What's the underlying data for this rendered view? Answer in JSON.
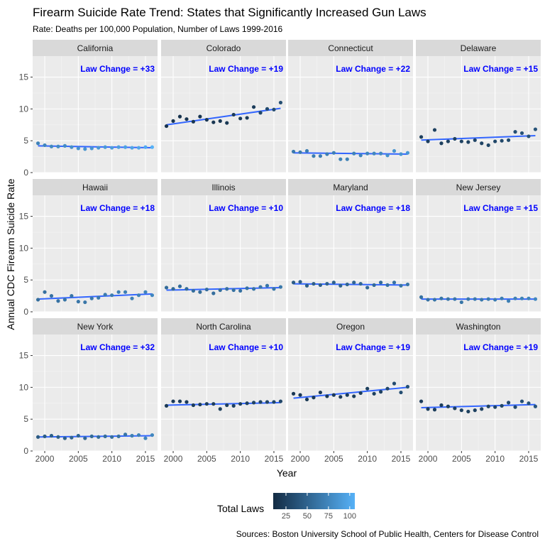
{
  "chart_data": {
    "type": "scatter",
    "title": "Firearm Suicide Rate Trend: States that Significantly Increased Gun Laws",
    "subtitle": "Rate: Deaths per 100,000 Population, Number of Laws 1999-2016",
    "xlabel": "Year",
    "ylabel": "Annual CDC Firearm Suicide Rate",
    "caption": "Sources: Boston University School of Public Health, Centers for Disease Control",
    "xlim": [
      1998.2,
      2016.8
    ],
    "ylim": [
      0,
      18.3
    ],
    "x_ticks": [
      2000,
      2005,
      2010,
      2015
    ],
    "y_ticks": [
      0,
      5,
      10,
      15
    ],
    "x_tick_labels": [
      "2000",
      "2005",
      "2010",
      "2015"
    ],
    "y_tick_labels": [
      "0",
      "5",
      "10",
      "15"
    ],
    "grid": true,
    "facet_layout": {
      "rows": 3,
      "cols": 4
    },
    "annotation_color": "#0000ff",
    "trend_color": "#3366ff",
    "panel_background": "#ebebeb",
    "strip_background": "#d9d9d9",
    "legend": {
      "title": "Total Laws",
      "placement": "bottom",
      "range": [
        10,
        106
      ],
      "ticks": [
        25,
        50,
        75,
        100
      ],
      "tick_labels": [
        "25",
        "50",
        "75",
        "100"
      ],
      "low_color": "#132b43",
      "high_color": "#56b1f7"
    },
    "panels": [
      {
        "state": "California",
        "law_change": "Law Change = +33",
        "x": [
          1999,
          2000,
          2001,
          2002,
          2003,
          2004,
          2005,
          2006,
          2007,
          2008,
          2009,
          2010,
          2011,
          2012,
          2013,
          2014,
          2015,
          2016
        ],
        "y": [
          4.6,
          4.3,
          4.1,
          4.1,
          4.2,
          4.0,
          3.8,
          3.7,
          3.8,
          3.9,
          4.0,
          3.9,
          4.0,
          4.0,
          3.9,
          3.9,
          4.0,
          4.0
        ],
        "laws": [
          73,
          75,
          77,
          79,
          80,
          82,
          84,
          85,
          86,
          88,
          89,
          91,
          93,
          95,
          97,
          99,
          102,
          106
        ],
        "trend": [
          [
            1999,
            4.2
          ],
          [
            2016,
            3.9
          ]
        ]
      },
      {
        "state": "Colorado",
        "law_change": "Law Change = +19",
        "x": [
          1999,
          2000,
          2001,
          2002,
          2003,
          2004,
          2005,
          2006,
          2007,
          2008,
          2009,
          2010,
          2011,
          2012,
          2013,
          2014,
          2015,
          2016
        ],
        "y": [
          7.3,
          8.1,
          8.8,
          8.4,
          8.0,
          8.8,
          8.3,
          7.9,
          8.1,
          7.8,
          9.1,
          8.5,
          8.6,
          10.3,
          9.4,
          10.0,
          9.9,
          11.0
        ],
        "laws": [
          16,
          16,
          16,
          17,
          17,
          17,
          18,
          18,
          19,
          19,
          20,
          20,
          21,
          22,
          30,
          32,
          33,
          35
        ],
        "trend": [
          [
            1999,
            7.5
          ],
          [
            2016,
            10.1
          ]
        ]
      },
      {
        "state": "Connecticut",
        "law_change": "Law Change = +22",
        "x": [
          1999,
          2000,
          2001,
          2002,
          2003,
          2004,
          2005,
          2006,
          2007,
          2008,
          2009,
          2010,
          2011,
          2012,
          2013,
          2014,
          2015,
          2016
        ],
        "y": [
          3.3,
          3.2,
          3.4,
          2.6,
          2.6,
          2.9,
          3.1,
          2.1,
          2.1,
          3.0,
          2.7,
          3.0,
          3.0,
          3.0,
          2.7,
          3.4,
          2.9,
          3.1
        ],
        "laws": [
          66,
          67,
          68,
          68,
          69,
          70,
          71,
          72,
          72,
          73,
          74,
          75,
          76,
          77,
          83,
          85,
          86,
          88
        ],
        "trend": [
          [
            1999,
            3.1
          ],
          [
            2016,
            2.9
          ]
        ]
      },
      {
        "state": "Delaware",
        "law_change": "Law Change = +15",
        "x": [
          1999,
          2000,
          2001,
          2002,
          2003,
          2004,
          2005,
          2006,
          2007,
          2008,
          2009,
          2010,
          2011,
          2012,
          2013,
          2014,
          2015,
          2016
        ],
        "y": [
          5.6,
          4.9,
          6.7,
          4.6,
          4.9,
          5.3,
          4.9,
          4.8,
          5.1,
          4.6,
          4.3,
          4.9,
          5.0,
          5.1,
          6.4,
          6.2,
          5.7,
          6.8
        ],
        "laws": [
          24,
          24,
          25,
          25,
          26,
          26,
          27,
          27,
          28,
          28,
          29,
          30,
          31,
          32,
          35,
          37,
          38,
          39
        ],
        "trend": [
          [
            1999,
            5.1
          ],
          [
            2016,
            5.8
          ]
        ]
      },
      {
        "state": "Hawaii",
        "law_change": "Law Change = +18",
        "x": [
          1999,
          2000,
          2001,
          2002,
          2003,
          2004,
          2005,
          2006,
          2007,
          2008,
          2009,
          2010,
          2011,
          2012,
          2013,
          2014,
          2015,
          2016
        ],
        "y": [
          1.9,
          3.1,
          2.5,
          1.7,
          1.9,
          2.5,
          1.6,
          1.5,
          2.1,
          2.2,
          2.7,
          2.6,
          3.1,
          3.1,
          2.1,
          2.6,
          3.1,
          2.6
        ],
        "laws": [
          58,
          59,
          60,
          61,
          62,
          63,
          64,
          64,
          65,
          66,
          67,
          68,
          69,
          70,
          71,
          73,
          74,
          76
        ],
        "trend": [
          [
            1999,
            2.0
          ],
          [
            2016,
            2.8
          ]
        ]
      },
      {
        "state": "Illinois",
        "law_change": "Law Change = +10",
        "x": [
          1999,
          2000,
          2001,
          2002,
          2003,
          2004,
          2005,
          2006,
          2007,
          2008,
          2009,
          2010,
          2011,
          2012,
          2013,
          2014,
          2015,
          2016
        ],
        "y": [
          3.8,
          3.6,
          4.0,
          3.6,
          3.3,
          3.1,
          3.5,
          2.9,
          3.4,
          3.6,
          3.4,
          3.3,
          3.7,
          3.6,
          3.9,
          4.1,
          3.6,
          3.9
        ],
        "laws": [
          55,
          55,
          56,
          56,
          57,
          57,
          58,
          58,
          59,
          59,
          60,
          60,
          61,
          62,
          63,
          63,
          64,
          65
        ],
        "trend": [
          [
            1999,
            3.4
          ],
          [
            2016,
            3.8
          ]
        ]
      },
      {
        "state": "Maryland",
        "law_change": "Law Change = +18",
        "x": [
          1999,
          2000,
          2001,
          2002,
          2003,
          2004,
          2005,
          2006,
          2007,
          2008,
          2009,
          2010,
          2011,
          2012,
          2013,
          2014,
          2015,
          2016
        ],
        "y": [
          4.6,
          4.7,
          4.1,
          4.4,
          4.2,
          4.4,
          4.6,
          4.1,
          4.3,
          4.6,
          4.4,
          3.8,
          4.2,
          4.6,
          4.2,
          4.6,
          4.1,
          4.3
        ],
        "laws": [
          45,
          46,
          47,
          47,
          48,
          49,
          50,
          50,
          51,
          52,
          53,
          54,
          55,
          56,
          60,
          61,
          62,
          63
        ],
        "trend": [
          [
            1999,
            4.4
          ],
          [
            2016,
            4.2
          ]
        ]
      },
      {
        "state": "New Jersey",
        "law_change": "Law Change = +15",
        "x": [
          1999,
          2000,
          2001,
          2002,
          2003,
          2004,
          2005,
          2006,
          2007,
          2008,
          2009,
          2010,
          2011,
          2012,
          2013,
          2014,
          2015,
          2016
        ],
        "y": [
          2.3,
          1.9,
          1.9,
          2.1,
          2.0,
          2.0,
          1.5,
          2.0,
          2.0,
          1.9,
          2.0,
          1.9,
          2.1,
          1.7,
          2.1,
          2.1,
          2.1,
          2.0
        ],
        "laws": [
          60,
          61,
          62,
          62,
          63,
          64,
          64,
          65,
          66,
          66,
          67,
          68,
          69,
          70,
          71,
          72,
          73,
          75
        ],
        "trend": [
          [
            1999,
            2.0
          ],
          [
            2016,
            2.0
          ]
        ]
      },
      {
        "state": "New York",
        "law_change": "Law Change = +32",
        "x": [
          1999,
          2000,
          2001,
          2002,
          2003,
          2004,
          2005,
          2006,
          2007,
          2008,
          2009,
          2010,
          2011,
          2012,
          2013,
          2014,
          2015,
          2016
        ],
        "y": [
          2.2,
          2.3,
          2.4,
          2.2,
          2.0,
          2.1,
          2.4,
          2.0,
          2.3,
          2.2,
          2.3,
          2.2,
          2.3,
          2.6,
          2.4,
          2.5,
          2.0,
          2.5
        ],
        "laws": [
          44,
          45,
          47,
          48,
          49,
          51,
          52,
          53,
          55,
          56,
          57,
          59,
          60,
          62,
          70,
          72,
          74,
          76
        ],
        "trend": [
          [
            1999,
            2.2
          ],
          [
            2016,
            2.4
          ]
        ]
      },
      {
        "state": "North Carolina",
        "law_change": "Law Change = +10",
        "x": [
          1999,
          2000,
          2001,
          2002,
          2003,
          2004,
          2005,
          2006,
          2007,
          2008,
          2009,
          2010,
          2011,
          2012,
          2013,
          2014,
          2015,
          2016
        ],
        "y": [
          7.1,
          7.8,
          7.8,
          7.7,
          7.2,
          7.3,
          7.4,
          7.4,
          6.6,
          7.2,
          7.1,
          7.4,
          7.5,
          7.6,
          7.7,
          7.7,
          7.7,
          7.8
        ],
        "laws": [
          20,
          20,
          21,
          21,
          22,
          22,
          23,
          23,
          24,
          24,
          25,
          25,
          26,
          27,
          28,
          28,
          29,
          30
        ],
        "trend": [
          [
            1999,
            7.2
          ],
          [
            2016,
            7.6
          ]
        ]
      },
      {
        "state": "Oregon",
        "law_change": "Law Change = +19",
        "x": [
          1999,
          2000,
          2001,
          2002,
          2003,
          2004,
          2005,
          2006,
          2007,
          2008,
          2009,
          2010,
          2011,
          2012,
          2013,
          2014,
          2015,
          2016
        ],
        "y": [
          9.0,
          8.8,
          8.1,
          8.4,
          9.2,
          8.6,
          8.8,
          8.5,
          8.8,
          8.6,
          9.1,
          9.8,
          9.0,
          9.3,
          9.8,
          10.6,
          9.2,
          10.1
        ],
        "laws": [
          18,
          18,
          19,
          19,
          20,
          20,
          21,
          21,
          22,
          22,
          23,
          24,
          25,
          26,
          30,
          33,
          35,
          37
        ],
        "trend": [
          [
            1999,
            8.3
          ],
          [
            2016,
            10.0
          ]
        ]
      },
      {
        "state": "Washington",
        "law_change": "Law Change = +19",
        "x": [
          1999,
          2000,
          2001,
          2002,
          2003,
          2004,
          2005,
          2006,
          2007,
          2008,
          2009,
          2010,
          2011,
          2012,
          2013,
          2014,
          2015,
          2016
        ],
        "y": [
          7.8,
          6.6,
          6.5,
          7.2,
          7.0,
          6.7,
          6.4,
          6.2,
          6.4,
          6.6,
          7.0,
          6.9,
          7.1,
          7.6,
          6.9,
          7.8,
          7.5,
          7.0
        ],
        "laws": [
          22,
          22,
          23,
          23,
          24,
          24,
          25,
          25,
          26,
          26,
          27,
          28,
          29,
          30,
          31,
          36,
          39,
          41
        ],
        "trend": [
          [
            1999,
            6.8
          ],
          [
            2016,
            7.3
          ]
        ]
      }
    ]
  }
}
